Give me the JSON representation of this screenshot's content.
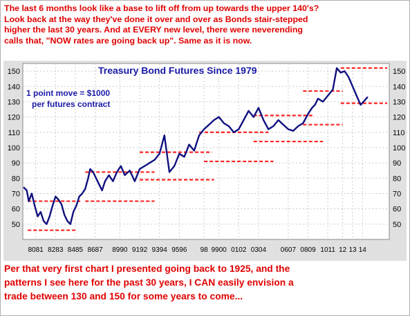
{
  "annotations": {
    "top": "The last 6 months look like a base to lift off from up towards the upper 140's?\nLook back at the way they've done it over and over as Bonds stair-stepped\nhigher the last 30 years. And at EVERY new level, there were neverending\ncalls that, \"NOW rates are going back up\". Same as it is now.",
    "bottom": "Per that very first chart I presented going back to 1925, and the\npatterns I see here for the past 30 years, I CAN easily envision a\ntrade between 130 and 150 for some years to come..."
  },
  "chart_data": {
    "type": "line",
    "title": "Treasury Bond Futures Since 1979",
    "note_lines": [
      "1 point move = $1000",
      "per futures contract"
    ],
    "ylim": [
      40,
      155
    ],
    "yticks": [
      50,
      60,
      70,
      80,
      90,
      100,
      110,
      120,
      130,
      140,
      150
    ],
    "xlim": [
      1979.7,
      2016.7
    ],
    "xtick_labels": [
      "8081",
      "8283",
      "8485",
      "8687",
      "8990",
      "9192",
      "9394",
      "9596",
      "98",
      "9900",
      "0102",
      "0304",
      "0607",
      "0809",
      "1011",
      "12",
      "13",
      "14"
    ],
    "xtick_years": [
      1981,
      1983,
      1985,
      1987,
      1989.5,
      1991.5,
      1993.5,
      1995.5,
      1998,
      1999.5,
      2001.5,
      2003.5,
      2006.5,
      2008.5,
      2010.5,
      2012,
      2013,
      2014
    ],
    "grid": true,
    "colors": {
      "line": "#101080",
      "levels": "#ff2020",
      "plot_bg": "#ffffff",
      "page_bg": "#e0e0e0"
    },
    "series": [
      {
        "name": "",
        "x": [
          1979.8,
          1980.1,
          1980.3,
          1980.6,
          1980.9,
          1981.2,
          1981.5,
          1981.8,
          1982.1,
          1982.4,
          1982.7,
          1983.0,
          1983.3,
          1983.6,
          1983.9,
          1984.2,
          1984.5,
          1984.8,
          1985.1,
          1985.4,
          1985.7,
          1986.0,
          1986.3,
          1986.5,
          1986.8,
          1987.1,
          1987.4,
          1987.7,
          1988.0,
          1988.4,
          1988.8,
          1989.2,
          1989.6,
          1990.0,
          1990.5,
          1991.0,
          1991.5,
          1992.0,
          1992.5,
          1993.0,
          1993.5,
          1994.0,
          1994.5,
          1995.0,
          1995.5,
          1996.0,
          1996.5,
          1997.0,
          1997.5,
          1998.0,
          1998.5,
          1999.0,
          1999.5,
          2000.0,
          2000.5,
          2001.0,
          2001.5,
          2002.0,
          2002.5,
          2003.0,
          2003.5,
          2004.0,
          2004.5,
          2005.0,
          2005.5,
          2006.0,
          2006.5,
          2007.0,
          2007.5,
          2008.0,
          2008.5,
          2008.9,
          2009.2,
          2009.5,
          2010.0,
          2010.5,
          2011.0,
          2011.4,
          2011.8,
          2012.2,
          2012.6,
          2013.0,
          2013.4,
          2013.8,
          2014.1,
          2014.5
        ],
        "values": [
          74,
          72,
          65,
          70,
          62,
          55,
          58,
          52,
          50,
          55,
          62,
          68,
          66,
          63,
          56,
          52,
          50,
          58,
          62,
          68,
          70,
          73,
          80,
          86,
          84,
          80,
          76,
          72,
          78,
          82,
          78,
          84,
          88,
          82,
          85,
          78,
          86,
          88,
          90,
          92,
          96,
          108,
          84,
          88,
          96,
          94,
          102,
          98,
          108,
          112,
          115,
          118,
          120,
          116,
          114,
          110,
          112,
          118,
          124,
          120,
          126,
          118,
          112,
          114,
          118,
          115,
          112,
          111,
          114,
          116,
          122,
          126,
          128,
          132,
          130,
          134,
          138,
          152,
          149,
          150,
          146,
          140,
          134,
          128,
          130,
          133
        ]
      }
    ],
    "support_levels": [
      {
        "value": 46,
        "x": [
          1980.2,
          1985.0
        ]
      },
      {
        "value": 65,
        "x": [
          1980.2,
          1985.5
        ]
      },
      {
        "value": 65,
        "x": [
          1986.0,
          1993.0
        ]
      },
      {
        "value": 84,
        "x": [
          1986.0,
          1993.0
        ]
      },
      {
        "value": 79,
        "x": [
          1991.5,
          1999.0
        ]
      },
      {
        "value": 97,
        "x": [
          1991.5,
          1998.8
        ]
      },
      {
        "value": 91,
        "x": [
          1998.0,
          2005.0
        ]
      },
      {
        "value": 110,
        "x": [
          1997.5,
          2004.5
        ]
      },
      {
        "value": 104,
        "x": [
          2003.0,
          2010.0
        ]
      },
      {
        "value": 121,
        "x": [
          2003.0,
          2009.0
        ]
      },
      {
        "value": 115,
        "x": [
          2008.0,
          2012.0
        ]
      },
      {
        "value": 137,
        "x": [
          2008.0,
          2012.0
        ]
      },
      {
        "value": 129,
        "x": [
          2011.8,
          2016.5
        ]
      },
      {
        "value": 152,
        "x": [
          2011.8,
          2016.5
        ]
      }
    ]
  }
}
